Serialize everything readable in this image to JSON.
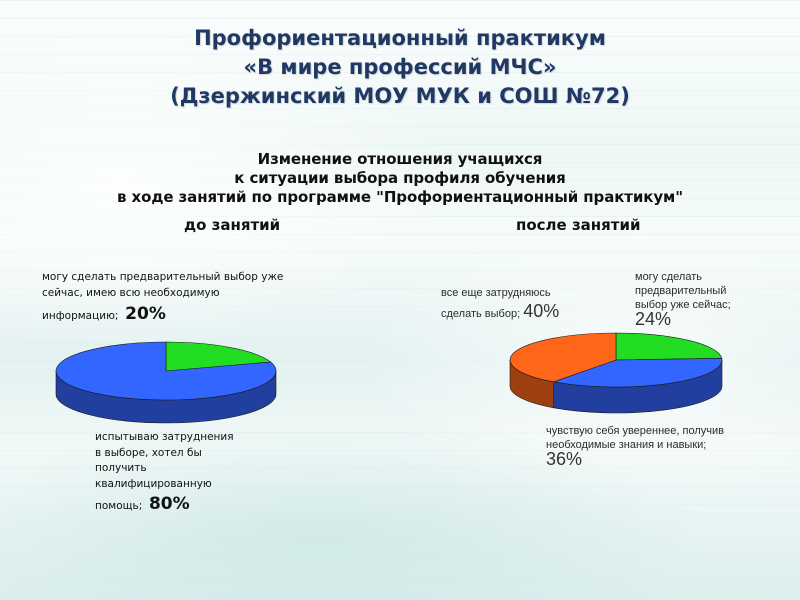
{
  "title": {
    "line1": "Профориентационный практикум",
    "line2": "«В мире профессий МЧС»",
    "line3": "(Дзержинский МОУ МУК  и СОШ №72)"
  },
  "chart_heading": {
    "line1": "Изменение отношения учащихся",
    "line2": "к ситуации выбора профиля обучения",
    "line3": "в ходе занятий по программе \"Профориентационный практикум\""
  },
  "colors": {
    "green": "#22dd22",
    "blue": "#3366ff",
    "orange": "#ff6619",
    "title": "#1f3864"
  },
  "chart_data": [
    {
      "type": "pie",
      "title": "до занятий",
      "slices": [
        {
          "label_lines": [
            "могу сделать предварительный  выбор уже",
            "сейчас, имею всю необходимую",
            "информацию;"
          ],
          "value": 20,
          "value_label": "20%",
          "color": "#22dd22"
        },
        {
          "label_lines": [
            "испытываю затруднения",
            "в выборе, хотел бы",
            "получить",
            "квалифицированную",
            "помощь;"
          ],
          "value": 80,
          "value_label": "80%",
          "color": "#3366ff"
        }
      ]
    },
    {
      "type": "pie",
      "title": "после занятий",
      "slices": [
        {
          "label_lines": [
            "могу сделать",
            "предварительный",
            "выбор уже сейчас;"
          ],
          "value": 24,
          "value_label": "24%",
          "color": "#22dd22"
        },
        {
          "label_lines": [
            "чувствую себя увереннее, получив",
            "необходимые знания и навыки;"
          ],
          "value": 36,
          "value_label": "36%",
          "color": "#3366ff"
        },
        {
          "label_lines": [
            "все еще затрудняюсь",
            "сделать выбор;"
          ],
          "value": 40,
          "value_label": "40%",
          "color": "#ff6619"
        }
      ]
    }
  ]
}
